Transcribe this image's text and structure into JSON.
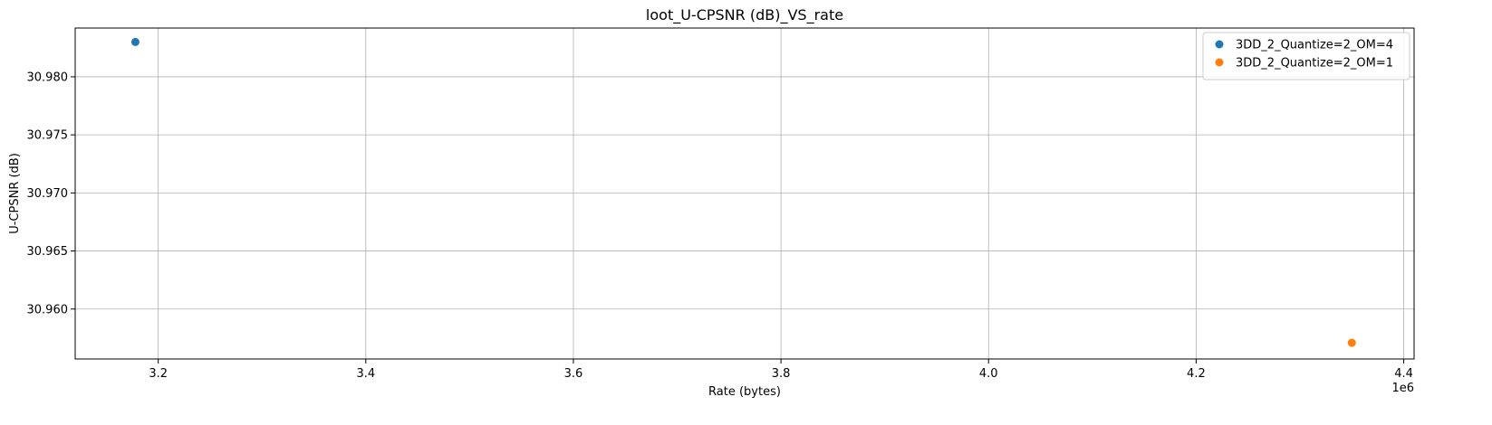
{
  "chart_data": {
    "type": "scatter",
    "title": "loot_U-CPSNR (dB)_VS_rate",
    "xlabel": "Rate (bytes)",
    "ylabel": "U-CPSNR (dB)",
    "x_offset_label": "1e6",
    "x_scale": 1000000,
    "xlim": [
      3120000,
      4410000
    ],
    "ylim": [
      30.9557,
      30.9842
    ],
    "x_ticks": [
      3200000,
      3400000,
      3600000,
      3800000,
      4000000,
      4200000,
      4400000
    ],
    "x_tick_labels": [
      "3.2",
      "3.4",
      "3.6",
      "3.8",
      "4.0",
      "4.2",
      "4.4"
    ],
    "y_ticks": [
      30.96,
      30.965,
      30.97,
      30.975,
      30.98
    ],
    "y_tick_labels": [
      "30.960",
      "30.965",
      "30.970",
      "30.975",
      "30.980"
    ],
    "grid": true,
    "legend_position": "top-right",
    "series": [
      {
        "name": "3DD_2_Quantize=2_OM=4",
        "color": "#1f77b4",
        "points": [
          {
            "x": 3178000,
            "y": 30.983
          }
        ]
      },
      {
        "name": "3DD_2_Quantize=2_OM=1",
        "color": "#ff7f0e",
        "points": [
          {
            "x": 4350000,
            "y": 30.9571
          }
        ]
      }
    ]
  }
}
